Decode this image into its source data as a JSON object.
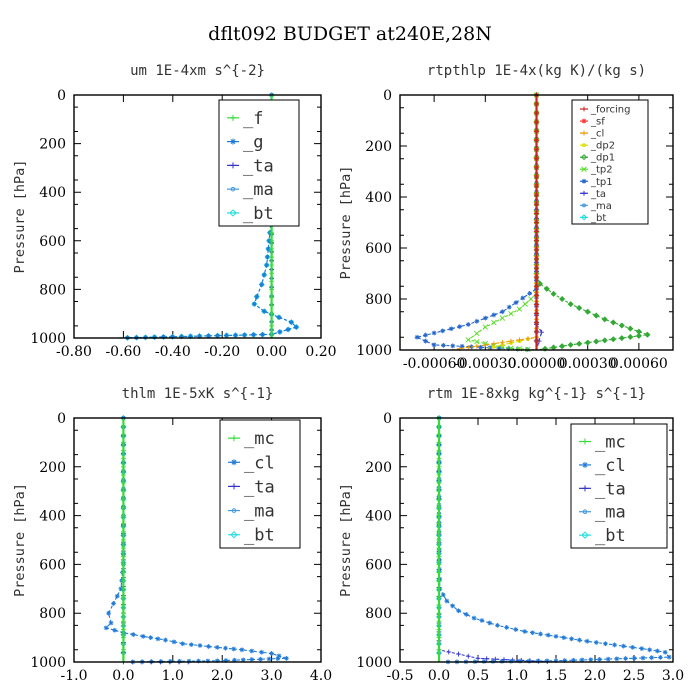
{
  "title": "dflt092  BUDGET at240E,28N",
  "chart_data": [
    {
      "type": "line",
      "title": "um  1E-4xm s^{-2}",
      "xlabel": "",
      "ylabel": "Pressure [hPa]",
      "xlim": [
        -0.8,
        0.2
      ],
      "ylim": [
        1000,
        0
      ],
      "xticks": [
        "-0.80",
        "-0.60",
        "-0.40",
        "-0.20",
        "0.00",
        "0.20"
      ],
      "yticks": [
        "0",
        "200",
        "400",
        "600",
        "800",
        "1000"
      ],
      "legend": [
        "_f",
        "_g",
        "_ta",
        "_ma",
        "_bt"
      ],
      "series": [
        {
          "name": "_f",
          "color": "#33dd33",
          "points": [
            [
              0,
              0
            ],
            [
              0,
              100
            ],
            [
              0,
              200
            ],
            [
              0,
              300
            ],
            [
              0,
              400
            ],
            [
              0,
              500
            ],
            [
              0,
              600
            ],
            [
              0,
              700
            ],
            [
              0,
              800
            ],
            [
              0,
              900
            ],
            [
              0,
              950
            ],
            [
              0,
              1000
            ]
          ]
        },
        {
          "name": "_g",
          "color": "#1e7ad8",
          "points": [
            [
              0,
              0
            ],
            [
              0,
              300
            ],
            [
              0,
              500
            ],
            [
              -0.01,
              600
            ],
            [
              -0.02,
              700
            ],
            [
              -0.04,
              780
            ],
            [
              -0.06,
              830
            ],
            [
              -0.07,
              860
            ],
            [
              -0.03,
              890
            ],
            [
              0.03,
              915
            ],
            [
              0.08,
              935
            ],
            [
              0.1,
              955
            ],
            [
              0,
              985
            ],
            [
              -0.62,
              1000
            ]
          ]
        },
        {
          "name": "_ta",
          "color": "#3333cc",
          "points": [
            [
              0,
              0
            ],
            [
              0,
              500
            ],
            [
              0,
              900
            ],
            [
              0,
              1000
            ]
          ]
        },
        {
          "name": "_ma",
          "color": "#4499dd",
          "points": [
            [
              0,
              0
            ],
            [
              0,
              500
            ],
            [
              0,
              900
            ],
            [
              0,
              1000
            ]
          ]
        },
        {
          "name": "_bt",
          "color": "#22dddd",
          "points": [
            [
              0,
              0
            ],
            [
              0,
              300
            ],
            [
              0,
              500
            ],
            [
              -0.01,
              600
            ],
            [
              -0.02,
              700
            ],
            [
              -0.04,
              780
            ],
            [
              -0.06,
              830
            ],
            [
              -0.07,
              860
            ],
            [
              -0.03,
              890
            ],
            [
              0.03,
              915
            ],
            [
              0.08,
              935
            ],
            [
              0.1,
              955
            ],
            [
              0,
              985
            ],
            [
              -0.62,
              1000
            ]
          ]
        }
      ]
    },
    {
      "type": "line",
      "title": "rtpthlp  1E-4x(kg K)/(kg s)",
      "xlabel": "",
      "ylabel": "Pressure [hPa]",
      "xlim": [
        -0.0008,
        0.0008
      ],
      "ylim": [
        1000,
        0
      ],
      "xticks": [
        "-0.00060",
        "-0.00030",
        "0.00000",
        "0.00030",
        "0.00060"
      ],
      "yticks": [
        "0",
        "200",
        "400",
        "600",
        "800",
        "1000"
      ],
      "legend": [
        "_forcing",
        "_sf",
        "_cl",
        "_dp2",
        "_dp1",
        "_tp2",
        "_tp1",
        "_ta",
        "_ma",
        "_bt"
      ],
      "series": [
        {
          "name": "_forcing",
          "color": "#cc2222",
          "points": [
            [
              0,
              0
            ],
            [
              0,
              1000
            ]
          ]
        },
        {
          "name": "_sf",
          "color": "#ff3333",
          "points": [
            [
              0,
              0
            ],
            [
              0,
              1000
            ]
          ]
        },
        {
          "name": "_cl",
          "color": "#ee9900",
          "points": [
            [
              0,
              0
            ],
            [
              0,
              950
            ],
            [
              -0.0005,
              1000
            ]
          ]
        },
        {
          "name": "_dp2",
          "color": "#dddd00",
          "points": [
            [
              0,
              0
            ],
            [
              0,
              950
            ],
            [
              -0.0003,
              995
            ]
          ]
        },
        {
          "name": "_dp1",
          "color": "#33aa33",
          "points": [
            [
              0,
              0
            ],
            [
              0,
              700
            ],
            [
              2e-05,
              740
            ],
            [
              0.0001,
              780
            ],
            [
              0.0002,
              820
            ],
            [
              0.0004,
              880
            ],
            [
              0.00065,
              940
            ],
            [
              0.0002,
              980
            ],
            [
              0,
              1000
            ]
          ]
        },
        {
          "name": "_tp2",
          "color": "#55dd22",
          "points": [
            [
              0,
              0
            ],
            [
              0,
              780
            ],
            [
              -0.0001,
              840
            ],
            [
              -0.0003,
              910
            ],
            [
              -0.0004,
              960
            ],
            [
              -0.0002,
              990
            ],
            [
              0,
              1000
            ]
          ]
        },
        {
          "name": "_tp1",
          "color": "#2266cc",
          "points": [
            [
              0,
              0
            ],
            [
              0,
              760
            ],
            [
              -0.0002,
              850
            ],
            [
              -0.0004,
              900
            ],
            [
              -0.0007,
              950
            ],
            [
              -0.0006,
              980
            ],
            [
              0,
              1000
            ]
          ]
        },
        {
          "name": "_ta",
          "color": "#3333cc",
          "points": [
            [
              0,
              0
            ],
            [
              0,
              900
            ],
            [
              3e-05,
              930
            ],
            [
              0,
              1000
            ]
          ]
        },
        {
          "name": "_ma",
          "color": "#4499dd",
          "points": [
            [
              0,
              0
            ],
            [
              0,
              1000
            ]
          ]
        },
        {
          "name": "_bt",
          "color": "#22dddd",
          "points": [
            [
              0,
              0
            ],
            [
              0,
              1000
            ]
          ]
        }
      ]
    },
    {
      "type": "line",
      "title": "thlm  1E-5xK s^{-1}",
      "xlabel": "",
      "ylabel": "Pressure [hPa]",
      "xlim": [
        -1.0,
        4.0
      ],
      "ylim": [
        1000,
        0
      ],
      "xticks": [
        "-1.0",
        "0.0",
        "1.0",
        "2.0",
        "3.0",
        "4.0"
      ],
      "yticks": [
        "0",
        "200",
        "400",
        "600",
        "800",
        "1000"
      ],
      "legend": [
        "_mc",
        "_cl",
        "_ta",
        "_ma",
        "_bt"
      ],
      "series": [
        {
          "name": "_mc",
          "color": "#33dd33",
          "points": [
            [
              0,
              0
            ],
            [
              0,
              100
            ],
            [
              0,
              200
            ],
            [
              0,
              300
            ],
            [
              0,
              400
            ],
            [
              0,
              500
            ],
            [
              0,
              600
            ],
            [
              0,
              700
            ],
            [
              0,
              800
            ],
            [
              0,
              900
            ],
            [
              0,
              950
            ],
            [
              0,
              1000
            ]
          ]
        },
        {
          "name": "_cl",
          "color": "#1e7ad8",
          "points": [
            [
              0,
              0
            ],
            [
              0,
              400
            ],
            [
              0,
              600
            ],
            [
              -0.05,
              700
            ],
            [
              -0.2,
              760
            ],
            [
              -0.3,
              800
            ],
            [
              -0.25,
              840
            ],
            [
              -0.35,
              860
            ],
            [
              0,
              880
            ],
            [
              0.4,
              895
            ],
            [
              0.85,
              910
            ],
            [
              1.2,
              925
            ],
            [
              1.9,
              940
            ],
            [
              2.4,
              950
            ],
            [
              3.0,
              965
            ],
            [
              3.3,
              985
            ],
            [
              1.9,
              995
            ],
            [
              0,
              1000
            ]
          ]
        },
        {
          "name": "_ta",
          "color": "#3333cc",
          "points": [
            [
              0,
              0
            ],
            [
              0,
              800
            ],
            [
              0,
              1000
            ],
            [
              1.5,
              1000
            ]
          ]
        },
        {
          "name": "_ma",
          "color": "#4499dd",
          "points": [
            [
              0,
              0
            ],
            [
              0,
              1000
            ]
          ]
        },
        {
          "name": "_bt",
          "color": "#22dddd",
          "points": [
            [
              0,
              0
            ],
            [
              0,
              1000
            ]
          ]
        }
      ]
    },
    {
      "type": "line",
      "title": "rtm  1E-8xkg kg^{-1} s^{-1}",
      "xlabel": "",
      "ylabel": "Pressure [hPa]",
      "xlim": [
        -0.5,
        3.0
      ],
      "ylim": [
        1000,
        0
      ],
      "xticks": [
        "-0.5",
        "0.0",
        "0.5",
        "1.0",
        "1.5",
        "2.0",
        "2.5",
        "3.0"
      ],
      "yticks": [
        "0",
        "200",
        "400",
        "600",
        "800",
        "1000"
      ],
      "legend": [
        "_mc",
        "_cl",
        "_ta",
        "_ma",
        "_bt"
      ],
      "series": [
        {
          "name": "_mc",
          "color": "#33dd33",
          "points": [
            [
              0,
              0
            ],
            [
              0,
              100
            ],
            [
              0,
              200
            ],
            [
              0,
              300
            ],
            [
              0,
              400
            ],
            [
              0,
              500
            ],
            [
              0,
              600
            ],
            [
              0,
              700
            ],
            [
              0,
              800
            ],
            [
              0,
              900
            ],
            [
              0,
              950
            ],
            [
              0,
              1000
            ]
          ]
        },
        {
          "name": "_cl",
          "color": "#1e7ad8",
          "points": [
            [
              0,
              0
            ],
            [
              0,
              500
            ],
            [
              0.01,
              700
            ],
            [
              0.1,
              750
            ],
            [
              0.25,
              790
            ],
            [
              0.45,
              820
            ],
            [
              0.75,
              850
            ],
            [
              1.1,
              875
            ],
            [
              1.5,
              895
            ],
            [
              1.9,
              915
            ],
            [
              2.25,
              930
            ],
            [
              2.6,
              945
            ],
            [
              2.9,
              960
            ],
            [
              2.95,
              980
            ],
            [
              1.5,
              995
            ],
            [
              0,
              1000
            ]
          ]
        },
        {
          "name": "_ta",
          "color": "#3333cc",
          "points": [
            [
              0,
              0
            ],
            [
              0,
              950
            ],
            [
              0.5,
              985
            ],
            [
              1.5,
              1000
            ]
          ]
        },
        {
          "name": "_ma",
          "color": "#4499dd",
          "points": [
            [
              0,
              0
            ],
            [
              0,
              1000
            ]
          ]
        },
        {
          "name": "_bt",
          "color": "#22dddd",
          "points": [
            [
              0,
              0
            ],
            [
              0,
              1000
            ]
          ]
        }
      ]
    }
  ]
}
